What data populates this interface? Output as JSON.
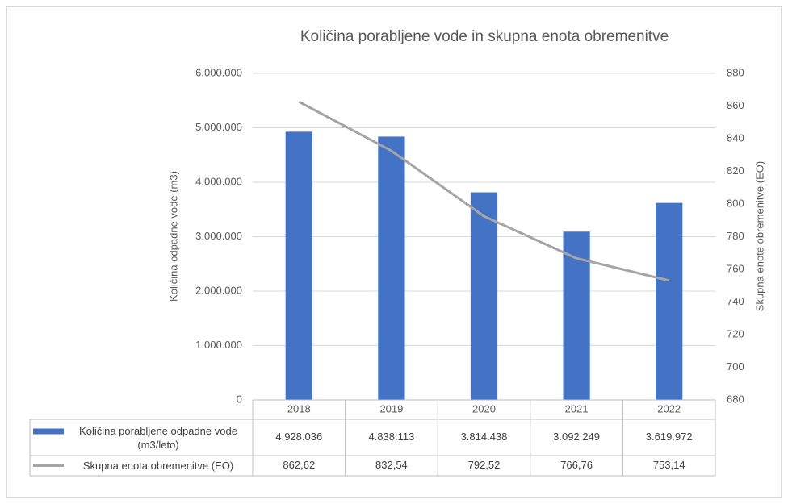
{
  "chart_data": {
    "type": "bar",
    "title": "Količina porabljene vode in skupna enota obremenitve",
    "ylabel": "Količina odpadne vode (m3)",
    "y2label": "Skupna enote obremenitve (EO)",
    "categories": [
      "2018",
      "2019",
      "2020",
      "2021",
      "2022"
    ],
    "series": [
      {
        "name": "Količina porabljene odpadne vode (m3/leto)",
        "type": "bar",
        "color": "#4472c4",
        "values": [
          4928036,
          4838113,
          3814438,
          3092249,
          3619972
        ],
        "value_labels": [
          "4.928.036",
          "4.838.113",
          "3.814.438",
          "3.092.249",
          "3.619.972"
        ]
      },
      {
        "name": "Skupna enota obremenitve (EO)",
        "type": "line",
        "color": "#a5a5a5",
        "axis": "y2",
        "values": [
          862.62,
          832.54,
          792.52,
          766.76,
          753.14
        ],
        "value_labels": [
          "862,62",
          "832,54",
          "792,52",
          "766,76",
          "753,14"
        ]
      }
    ],
    "ylim": [
      0,
      6000000
    ],
    "yticks": [
      0,
      {
        "value": 1000000,
        "label": "1.000.000"
      },
      {
        "value": 2000000,
        "label": "2.000.000"
      },
      {
        "value": 3000000,
        "label": "3.000.000"
      },
      {
        "value": 4000000,
        "label": "4.000.000"
      },
      {
        "value": 5000000,
        "label": "5.000.000"
      },
      {
        "value": 6000000,
        "label": "6.000.000"
      }
    ],
    "y2lim": [
      680,
      880
    ],
    "y2ticks": [
      680,
      700,
      720,
      740,
      760,
      780,
      800,
      820,
      840,
      860,
      880
    ],
    "grid": true,
    "data_table": true
  }
}
